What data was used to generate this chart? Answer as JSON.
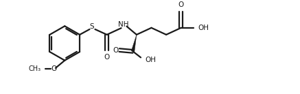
{
  "background_color": "#ffffff",
  "line_color": "#1a1a1a",
  "line_width": 1.6,
  "font_size": 7.5,
  "figsize": [
    4.37,
    1.38
  ],
  "dpi": 100,
  "xlim": [
    -0.5,
    10.5
  ],
  "ylim": [
    -0.5,
    3.2
  ]
}
